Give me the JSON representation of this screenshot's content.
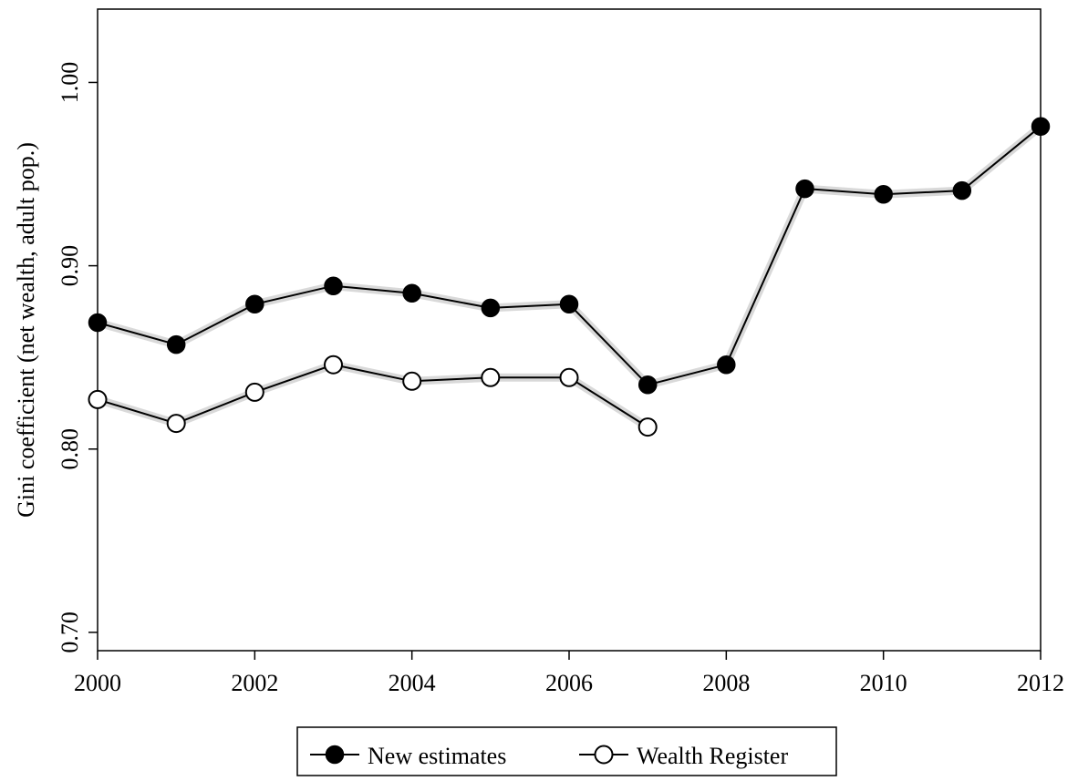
{
  "chart_data": {
    "type": "line",
    "title": "",
    "xlabel": "",
    "ylabel": "Gini coefficient (net wealth, adult pop.)",
    "xlim": [
      2000,
      2012
    ],
    "ylim": [
      0.69,
      1.04
    ],
    "x_ticks": [
      2000,
      2002,
      2004,
      2006,
      2008,
      2010,
      2012
    ],
    "x_tick_labels": [
      "2000",
      "2002",
      "2004",
      "2006",
      "2008",
      "2010",
      "2012"
    ],
    "y_ticks": [
      0.7,
      0.8,
      0.9,
      1.0
    ],
    "y_tick_labels": [
      "0.70",
      "0.80",
      "0.90",
      "1.00"
    ],
    "grid": false,
    "legend_position": "bottom",
    "series": [
      {
        "name": "New estimates",
        "marker": "filled-circle",
        "color": "#000000",
        "band_color": "#d9d9d9",
        "x": [
          2000,
          2001,
          2002,
          2003,
          2004,
          2005,
          2006,
          2007,
          2008,
          2009,
          2010,
          2011,
          2012
        ],
        "values": [
          0.869,
          0.857,
          0.879,
          0.889,
          0.885,
          0.877,
          0.879,
          0.835,
          0.846,
          0.942,
          0.939,
          0.941,
          0.976
        ]
      },
      {
        "name": "Wealth Register",
        "marker": "open-circle",
        "color": "#000000",
        "band_color": "#d9d9d9",
        "x": [
          2000,
          2001,
          2002,
          2003,
          2004,
          2005,
          2006,
          2007
        ],
        "values": [
          0.827,
          0.814,
          0.831,
          0.846,
          0.837,
          0.839,
          0.839,
          0.812
        ]
      }
    ]
  }
}
